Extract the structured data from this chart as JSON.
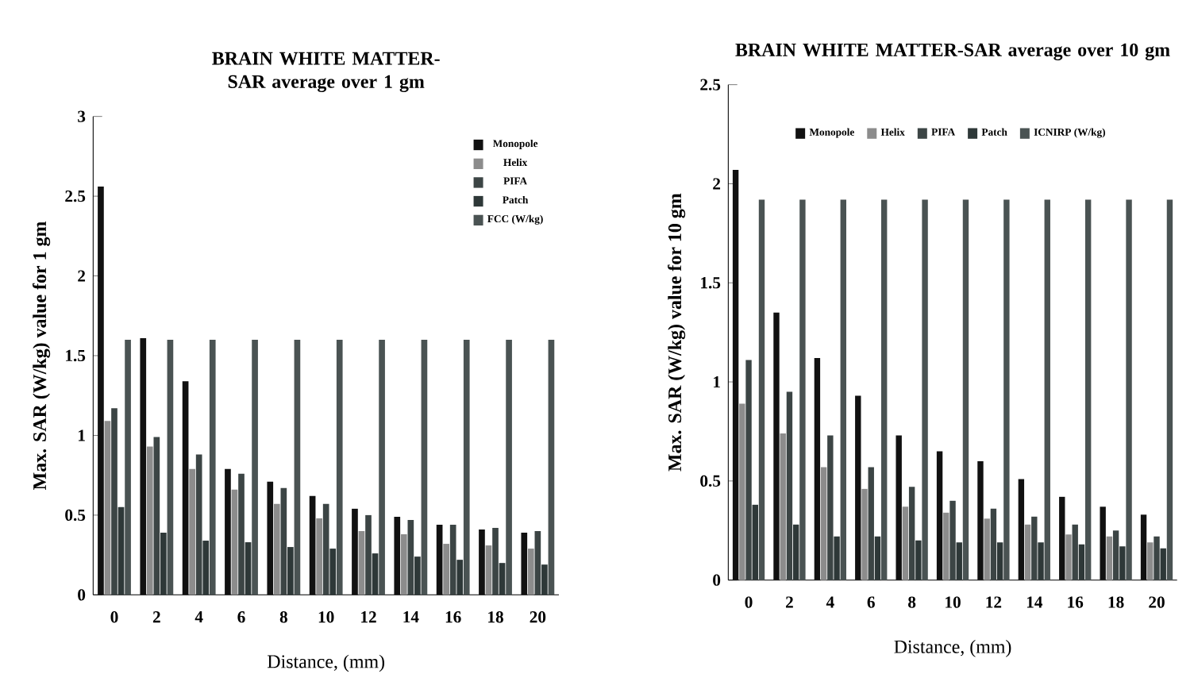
{
  "chart_data": [
    {
      "type": "bar",
      "title": "BRAIN WHITE MATTER-SAR average over 1 gm",
      "xlabel": "Distance, (mm)",
      "ylabel": "Max. SAR (W/kg) value for 1 gm",
      "categories": [
        "0",
        "2",
        "4",
        "6",
        "8",
        "10",
        "12",
        "14",
        "16",
        "18",
        "20"
      ],
      "series": [
        {
          "name": "Monopole",
          "color": "#111111",
          "values": [
            2.56,
            1.61,
            1.34,
            0.79,
            0.71,
            0.62,
            0.54,
            0.49,
            0.44,
            0.41,
            0.39
          ]
        },
        {
          "name": "Helix",
          "color": "#8c8c8c",
          "values": [
            1.09,
            0.93,
            0.79,
            0.66,
            0.57,
            0.48,
            0.4,
            0.38,
            0.32,
            0.31,
            0.29
          ]
        },
        {
          "name": "PIFA",
          "color": "#3c4545",
          "values": [
            1.17,
            0.99,
            0.88,
            0.76,
            0.67,
            0.57,
            0.5,
            0.47,
            0.44,
            0.42,
            0.4
          ]
        },
        {
          "name": "Patch",
          "color": "#2e3838",
          "values": [
            0.55,
            0.39,
            0.34,
            0.33,
            0.3,
            0.29,
            0.26,
            0.24,
            0.22,
            0.2,
            0.19
          ]
        },
        {
          "name": "FCC (W/kg)",
          "color": "#4a5353",
          "values": [
            1.6,
            1.6,
            1.6,
            1.6,
            1.6,
            1.6,
            1.6,
            1.6,
            1.6,
            1.6,
            1.6
          ]
        }
      ],
      "ylim": [
        0,
        3
      ],
      "yticks": [
        0,
        0.5,
        1,
        1.5,
        2,
        2.5,
        3
      ],
      "legend": "top right",
      "grid": false
    },
    {
      "type": "bar",
      "title": "BRAIN WHITE MATTER-SAR average over 10 gm",
      "xlabel": "Distance, (mm)",
      "ylabel": "Max. SAR (W/kg) value for 10 gm",
      "categories": [
        "0",
        "2",
        "4",
        "6",
        "8",
        "10",
        "12",
        "14",
        "16",
        "18",
        "20"
      ],
      "series": [
        {
          "name": "Monopole",
          "color": "#111111",
          "values": [
            2.07,
            1.35,
            1.12,
            0.93,
            0.73,
            0.65,
            0.6,
            0.51,
            0.42,
            0.37,
            0.33
          ]
        },
        {
          "name": "Helix",
          "color": "#8c8c8c",
          "values": [
            0.89,
            0.74,
            0.57,
            0.46,
            0.37,
            0.34,
            0.31,
            0.28,
            0.23,
            0.22,
            0.19
          ]
        },
        {
          "name": "PIFA",
          "color": "#3c4545",
          "values": [
            1.11,
            0.95,
            0.73,
            0.57,
            0.47,
            0.4,
            0.36,
            0.32,
            0.28,
            0.25,
            0.22
          ]
        },
        {
          "name": "Patch",
          "color": "#2e3838",
          "values": [
            0.38,
            0.28,
            0.22,
            0.22,
            0.2,
            0.19,
            0.19,
            0.19,
            0.18,
            0.17,
            0.16
          ]
        },
        {
          "name": "ICNIRP (W/kg)",
          "color": "#4a5353",
          "values": [
            1.92,
            1.92,
            1.92,
            1.92,
            1.92,
            1.92,
            1.92,
            1.92,
            1.92,
            1.92,
            1.92
          ]
        }
      ],
      "ylim": [
        0,
        2.5
      ],
      "yticks": [
        0,
        0.5,
        1,
        1.5,
        2,
        2.5
      ],
      "legend": "top",
      "grid": false
    }
  ]
}
